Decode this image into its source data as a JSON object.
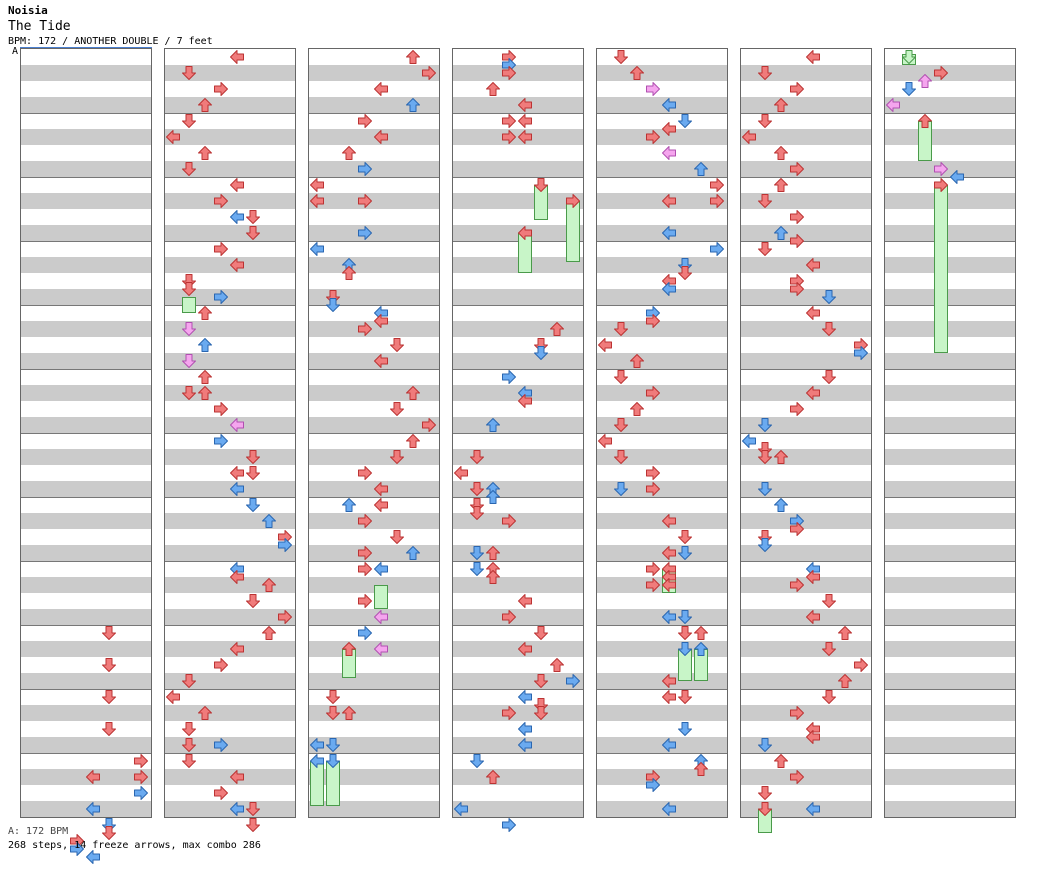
{
  "artist": "Noisia",
  "title": "The Tide",
  "info": "BPM: 172 / ANOTHER DOUBLE / 7 feet",
  "bpm_marker": "A",
  "footer_bpm": "A: 172 BPM",
  "stats": "268 steps, 14 freeze arrows, max combo 286",
  "colors": {
    "red": "#f07b7b",
    "blue": "#6aaaf0",
    "pink": "#f5a5ee",
    "freeze": "#c8f5c8",
    "band": "#cbcbcb"
  },
  "columns": [
    {
      "arrows": [
        [
          5,
          36,
          "r"
        ],
        [
          5,
          38,
          "r"
        ],
        [
          5,
          40,
          "r"
        ],
        [
          5,
          42,
          "r"
        ],
        [
          7,
          44,
          "r"
        ],
        [
          4,
          45,
          "r"
        ],
        [
          7,
          45,
          "r"
        ],
        [
          7,
          46,
          "b"
        ],
        [
          4,
          47,
          "b"
        ],
        [
          5,
          48,
          "b"
        ],
        [
          5,
          48.5,
          "r"
        ],
        [
          3,
          49,
          "r"
        ],
        [
          3,
          49.5,
          "b"
        ],
        [
          4,
          50,
          "b"
        ]
      ],
      "freezes": []
    },
    {
      "arrows": [
        [
          4,
          0,
          "r"
        ],
        [
          1,
          1,
          "r"
        ],
        [
          3,
          2,
          "r"
        ],
        [
          2,
          3,
          "r"
        ],
        [
          1,
          4,
          "r"
        ],
        [
          0,
          5,
          "r"
        ],
        [
          2,
          6,
          "r"
        ],
        [
          1,
          7,
          "r"
        ],
        [
          4,
          8,
          "r"
        ],
        [
          3,
          9,
          "r"
        ],
        [
          4,
          10,
          "b"
        ],
        [
          5,
          10,
          "r"
        ],
        [
          5,
          11,
          "r"
        ],
        [
          3,
          12,
          "r"
        ],
        [
          4,
          13,
          "r"
        ],
        [
          1,
          14,
          "r"
        ],
        [
          1,
          14.5,
          "r"
        ],
        [
          3,
          15,
          "b"
        ],
        [
          2,
          16,
          "r"
        ],
        [
          1,
          17,
          "p"
        ],
        [
          2,
          18,
          "b"
        ],
        [
          1,
          19,
          "p"
        ],
        [
          2,
          20,
          "r"
        ],
        [
          1,
          21,
          "r"
        ],
        [
          2,
          21,
          "r"
        ],
        [
          3,
          22,
          "r"
        ],
        [
          4,
          23,
          "p"
        ],
        [
          3,
          24,
          "b"
        ],
        [
          5,
          25,
          "r"
        ],
        [
          4,
          26,
          "r"
        ],
        [
          5,
          26,
          "r"
        ],
        [
          4,
          27,
          "b"
        ],
        [
          5,
          28,
          "b"
        ],
        [
          6,
          29,
          "b"
        ],
        [
          7,
          30,
          "r"
        ],
        [
          7,
          30.5,
          "b"
        ],
        [
          4,
          32,
          "b"
        ],
        [
          4,
          32.5,
          "r"
        ],
        [
          6,
          33,
          "r"
        ],
        [
          5,
          34,
          "r"
        ],
        [
          7,
          35,
          "r"
        ],
        [
          6,
          36,
          "r"
        ],
        [
          4,
          37,
          "r"
        ],
        [
          3,
          38,
          "r"
        ],
        [
          1,
          39,
          "r"
        ],
        [
          0,
          40,
          "r"
        ],
        [
          2,
          41,
          "r"
        ],
        [
          1,
          42,
          "r"
        ],
        [
          1,
          43,
          "r"
        ],
        [
          3,
          43,
          "b"
        ],
        [
          1,
          44,
          "r"
        ],
        [
          4,
          45,
          "r"
        ],
        [
          3,
          46,
          "r"
        ],
        [
          4,
          47,
          "b"
        ],
        [
          5,
          47,
          "r"
        ],
        [
          5,
          48,
          "r"
        ]
      ],
      "freezes": [
        [
          1,
          15,
          16
        ]
      ]
    },
    {
      "arrows": [
        [
          6,
          0,
          "r"
        ],
        [
          7,
          1,
          "r"
        ],
        [
          4,
          2,
          "r"
        ],
        [
          6,
          3,
          "b"
        ],
        [
          3,
          4,
          "r"
        ],
        [
          4,
          5,
          "r"
        ],
        [
          2,
          6,
          "r"
        ],
        [
          3,
          7,
          "b"
        ],
        [
          0,
          8,
          "r"
        ],
        [
          0,
          9,
          "r"
        ],
        [
          3,
          9,
          "r"
        ],
        [
          3,
          11,
          "b"
        ],
        [
          0,
          12,
          "b"
        ],
        [
          2,
          13,
          "b"
        ],
        [
          2,
          13.5,
          "r"
        ],
        [
          1,
          15,
          "r"
        ],
        [
          1,
          15.5,
          "b"
        ],
        [
          4,
          16,
          "b"
        ],
        [
          4,
          16.5,
          "r"
        ],
        [
          3,
          17,
          "r"
        ],
        [
          5,
          18,
          "r"
        ],
        [
          4,
          19,
          "r"
        ],
        [
          6,
          21,
          "r"
        ],
        [
          5,
          22,
          "r"
        ],
        [
          7,
          23,
          "r"
        ],
        [
          6,
          24,
          "r"
        ],
        [
          5,
          25,
          "r"
        ],
        [
          3,
          26,
          "r"
        ],
        [
          4,
          27,
          "r"
        ],
        [
          2,
          28,
          "b"
        ],
        [
          4,
          28,
          "r"
        ],
        [
          3,
          29,
          "r"
        ],
        [
          5,
          30,
          "r"
        ],
        [
          3,
          31,
          "r"
        ],
        [
          6,
          31,
          "b"
        ],
        [
          3,
          32,
          "r"
        ],
        [
          4,
          32,
          "b"
        ],
        [
          3,
          34,
          "r"
        ],
        [
          4,
          35,
          "p"
        ],
        [
          3,
          36,
          "b"
        ],
        [
          4,
          37,
          "p"
        ],
        [
          2,
          37,
          "r"
        ],
        [
          1,
          40,
          "r"
        ],
        [
          1,
          41,
          "r"
        ],
        [
          2,
          41,
          "r"
        ],
        [
          0,
          43,
          "b"
        ],
        [
          1,
          43,
          "b"
        ],
        [
          0,
          44,
          "b"
        ],
        [
          1,
          44,
          "b"
        ]
      ],
      "freezes": [
        [
          4,
          33,
          34.5
        ],
        [
          2,
          37,
          38.8
        ],
        [
          0,
          44,
          46.8
        ],
        [
          1,
          44,
          46.8
        ]
      ]
    },
    {
      "arrows": [
        [
          3,
          0,
          "r"
        ],
        [
          3,
          0.5,
          "b"
        ],
        [
          3,
          1,
          "r"
        ],
        [
          2,
          2,
          "r"
        ],
        [
          4,
          3,
          "r"
        ],
        [
          3,
          4,
          "r"
        ],
        [
          4,
          4,
          "r"
        ],
        [
          3,
          5,
          "r"
        ],
        [
          4,
          5,
          "r"
        ],
        [
          5,
          8,
          "r"
        ],
        [
          7,
          9,
          "r"
        ],
        [
          4,
          11,
          "r"
        ],
        [
          6,
          17,
          "r"
        ],
        [
          5,
          18,
          "r"
        ],
        [
          5,
          18.5,
          "b"
        ],
        [
          3,
          20,
          "b"
        ],
        [
          4,
          21,
          "b"
        ],
        [
          4,
          21.5,
          "r"
        ],
        [
          2,
          23,
          "b"
        ],
        [
          1,
          25,
          "r"
        ],
        [
          0,
          26,
          "r"
        ],
        [
          1,
          27,
          "r"
        ],
        [
          2,
          27,
          "b"
        ],
        [
          2,
          27.5,
          "b"
        ],
        [
          1,
          28,
          "r"
        ],
        [
          1,
          28.5,
          "r"
        ],
        [
          3,
          29,
          "r"
        ],
        [
          1,
          31,
          "b"
        ],
        [
          2,
          31,
          "r"
        ],
        [
          1,
          32,
          "b"
        ],
        [
          2,
          32,
          "r"
        ],
        [
          2,
          32.5,
          "r"
        ],
        [
          4,
          34,
          "r"
        ],
        [
          3,
          35,
          "r"
        ],
        [
          5,
          36,
          "r"
        ],
        [
          4,
          37,
          "r"
        ],
        [
          6,
          38,
          "r"
        ],
        [
          5,
          39,
          "r"
        ],
        [
          7,
          39,
          "b"
        ],
        [
          4,
          40,
          "b"
        ],
        [
          5,
          40.5,
          "r"
        ],
        [
          3,
          41,
          "r"
        ],
        [
          5,
          41,
          "r"
        ],
        [
          4,
          42,
          "b"
        ],
        [
          4,
          43,
          "b"
        ],
        [
          1,
          44,
          "b"
        ],
        [
          2,
          45,
          "r"
        ],
        [
          0,
          47,
          "b"
        ],
        [
          3,
          48,
          "b"
        ]
      ],
      "freezes": [
        [
          5,
          8,
          10.2
        ],
        [
          7,
          9,
          12.8
        ],
        [
          4,
          11,
          13.5
        ]
      ]
    },
    {
      "arrows": [
        [
          1,
          0,
          "r"
        ],
        [
          2,
          1,
          "r"
        ],
        [
          3,
          2,
          "p"
        ],
        [
          4,
          3,
          "b"
        ],
        [
          5,
          4,
          "b"
        ],
        [
          4,
          4.5,
          "r"
        ],
        [
          3,
          5,
          "r"
        ],
        [
          4,
          6,
          "p"
        ],
        [
          6,
          7,
          "b"
        ],
        [
          7,
          8,
          "r"
        ],
        [
          7,
          9,
          "r"
        ],
        [
          4,
          9,
          "r"
        ],
        [
          4,
          11,
          "b"
        ],
        [
          7,
          12,
          "b"
        ],
        [
          5,
          13,
          "b"
        ],
        [
          5,
          13.5,
          "r"
        ],
        [
          4,
          14,
          "r"
        ],
        [
          4,
          14.5,
          "b"
        ],
        [
          3,
          16,
          "b"
        ],
        [
          3,
          16.5,
          "r"
        ],
        [
          1,
          17,
          "r"
        ],
        [
          0,
          18,
          "r"
        ],
        [
          2,
          19,
          "r"
        ],
        [
          1,
          20,
          "r"
        ],
        [
          3,
          21,
          "r"
        ],
        [
          2,
          22,
          "r"
        ],
        [
          1,
          23,
          "r"
        ],
        [
          0,
          24,
          "r"
        ],
        [
          1,
          25,
          "r"
        ],
        [
          3,
          26,
          "r"
        ],
        [
          1,
          27,
          "b"
        ],
        [
          3,
          27,
          "r"
        ],
        [
          4,
          29,
          "r"
        ],
        [
          5,
          30,
          "r"
        ],
        [
          4,
          31,
          "r"
        ],
        [
          5,
          31,
          "b"
        ],
        [
          4,
          32,
          "r"
        ],
        [
          3,
          32,
          "r"
        ],
        [
          4,
          32.5,
          "r"
        ],
        [
          3,
          33,
          "r"
        ],
        [
          4,
          33,
          "r"
        ],
        [
          4,
          35,
          "b"
        ],
        [
          5,
          35,
          "b"
        ],
        [
          5,
          36,
          "r"
        ],
        [
          6,
          36,
          "r"
        ],
        [
          5,
          37,
          "b"
        ],
        [
          6,
          37,
          "b"
        ],
        [
          4,
          39,
          "r"
        ],
        [
          4,
          40,
          "r"
        ],
        [
          5,
          40,
          "r"
        ],
        [
          5,
          42,
          "b"
        ],
        [
          4,
          43,
          "b"
        ],
        [
          6,
          44,
          "b"
        ],
        [
          6,
          44.5,
          "r"
        ],
        [
          3,
          45,
          "r"
        ],
        [
          3,
          45.5,
          "b"
        ],
        [
          4,
          47,
          "b"
        ]
      ],
      "freezes": [
        [
          4,
          32,
          33.5
        ],
        [
          5,
          37,
          39
        ],
        [
          6,
          37,
          39
        ]
      ]
    },
    {
      "arrows": [
        [
          4,
          0,
          "r"
        ],
        [
          1,
          1,
          "r"
        ],
        [
          3,
          2,
          "r"
        ],
        [
          2,
          3,
          "r"
        ],
        [
          1,
          4,
          "r"
        ],
        [
          0,
          5,
          "r"
        ],
        [
          2,
          6,
          "r"
        ],
        [
          3,
          7,
          "r"
        ],
        [
          2,
          8,
          "r"
        ],
        [
          1,
          9,
          "r"
        ],
        [
          3,
          10,
          "r"
        ],
        [
          2,
          11,
          "b"
        ],
        [
          3,
          11.5,
          "r"
        ],
        [
          1,
          12,
          "r"
        ],
        [
          4,
          13,
          "r"
        ],
        [
          3,
          14,
          "r"
        ],
        [
          5,
          15,
          "b"
        ],
        [
          3,
          14.5,
          "r"
        ],
        [
          4,
          16,
          "r"
        ],
        [
          5,
          17,
          "r"
        ],
        [
          7,
          18,
          "r"
        ],
        [
          7,
          18.5,
          "b"
        ],
        [
          5,
          20,
          "r"
        ],
        [
          4,
          21,
          "r"
        ],
        [
          3,
          22,
          "r"
        ],
        [
          1,
          23,
          "b"
        ],
        [
          0,
          24,
          "b"
        ],
        [
          1,
          24.5,
          "r"
        ],
        [
          1,
          25,
          "r"
        ],
        [
          2,
          25,
          "r"
        ],
        [
          1,
          27,
          "b"
        ],
        [
          2,
          28,
          "b"
        ],
        [
          3,
          29,
          "b"
        ],
        [
          3,
          29.5,
          "r"
        ],
        [
          1,
          30,
          "r"
        ],
        [
          1,
          30.5,
          "b"
        ],
        [
          4,
          32,
          "b"
        ],
        [
          4,
          32.5,
          "r"
        ],
        [
          3,
          33,
          "r"
        ],
        [
          5,
          34,
          "r"
        ],
        [
          4,
          35,
          "r"
        ],
        [
          6,
          36,
          "r"
        ],
        [
          5,
          37,
          "r"
        ],
        [
          7,
          38,
          "r"
        ],
        [
          6,
          39,
          "r"
        ],
        [
          5,
          40,
          "r"
        ],
        [
          3,
          41,
          "r"
        ],
        [
          4,
          42,
          "r"
        ],
        [
          4,
          42.5,
          "r"
        ],
        [
          1,
          43,
          "b"
        ],
        [
          2,
          44,
          "r"
        ],
        [
          3,
          45,
          "r"
        ],
        [
          1,
          46,
          "r"
        ],
        [
          4,
          47,
          "b"
        ],
        [
          1,
          47,
          "r"
        ]
      ],
      "freezes": [
        [
          1,
          47,
          48.5
        ]
      ]
    },
    {
      "arrows": [
        [
          1,
          0,
          "g"
        ],
        [
          3,
          1,
          "r"
        ],
        [
          2,
          1.5,
          "p"
        ],
        [
          1,
          2,
          "b"
        ],
        [
          0,
          3,
          "p"
        ],
        [
          2,
          4,
          "r"
        ],
        [
          3,
          7,
          "p"
        ],
        [
          4,
          7.5,
          "b"
        ],
        [
          3,
          8,
          "r"
        ]
      ],
      "freezes": [
        [
          1,
          -0.2,
          0.5
        ],
        [
          2,
          4,
          6.5
        ],
        [
          3,
          8,
          18.5
        ]
      ]
    }
  ]
}
